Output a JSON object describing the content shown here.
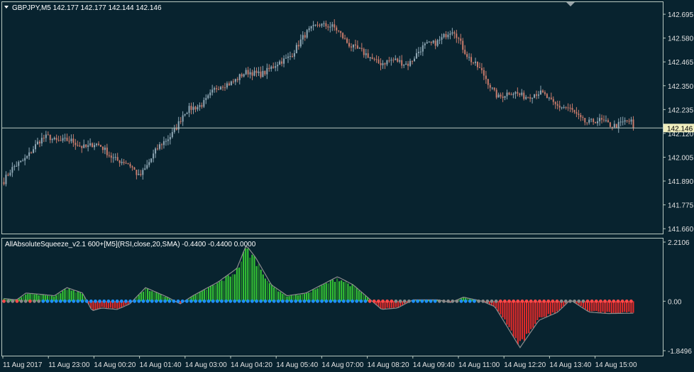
{
  "colors": {
    "background": "#08232F",
    "frame": "#B8C8C0",
    "candle_up": "#8FA8B6",
    "candle_down": "#C97B6B",
    "price_line": "#B8C8C0",
    "price_tag_bg": "#F0EEBE",
    "hist_green": "#33C233",
    "hist_green_dark": "#1F7A2A",
    "hist_red": "#E02A2A",
    "envelope": "#8C8C8C",
    "dot_blue": "#1E90FF",
    "dot_red": "#FF4A4A",
    "dot_gray": "#8A8A8A"
  },
  "main_panel": {
    "header": "GBPJPY,M5  142.177 142.177 142.144 142.146",
    "current_price": "142.146",
    "price_ticks": [
      "142.695",
      "142.580",
      "142.465",
      "142.350",
      "142.235",
      "142.120",
      "142.005",
      "141.890",
      "141.775",
      "141.660"
    ]
  },
  "indicator_panel": {
    "title": "AllAbsoluteSqueeze_v2.1 600+[M5](RSI,close,20,SMA) -0.4400 -0.4400 0.0000",
    "ticks": [
      "2.2106",
      "0.00",
      "-1.8496"
    ]
  },
  "time_axis": [
    "11 Aug 2017",
    "11 Aug 23:00",
    "14 Aug 00:20",
    "14 Aug 01:40",
    "14 Aug 03:00",
    "14 Aug 04:20",
    "14 Aug 05:40",
    "14 Aug 07:00",
    "14 Aug 08:20",
    "14 Aug 09:40",
    "14 Aug 11:00",
    "14 Aug 12:20",
    "14 Aug 13:40",
    "14 Aug 15:00"
  ],
  "chart_data": [
    {
      "type": "candlestick",
      "symbol": "GBPJPY",
      "timeframe": "M5",
      "ylim": [
        141.64,
        142.75
      ],
      "key_points": [
        {
          "t": "11 Aug 2017",
          "close": 141.89
        },
        {
          "t": "11 Aug 23:00",
          "close": 142.1
        },
        {
          "t": "14 Aug 00:20",
          "close": 142.08
        },
        {
          "t": "14 Aug 01:40",
          "close": 141.9
        },
        {
          "t": "14 Aug 03:00",
          "close": 142.23
        },
        {
          "t": "14 Aug 04:20",
          "close": 142.35
        },
        {
          "t": "14 Aug 05:40",
          "close": 142.45
        },
        {
          "t": "14 Aug 07:00",
          "close": 142.65
        },
        {
          "t": "14 Aug 08:20",
          "close": 142.5
        },
        {
          "t": "14 Aug 09:40",
          "close": 142.47
        },
        {
          "t": "14 Aug 11:00",
          "close": 142.6
        },
        {
          "t": "14 Aug 12:20",
          "close": 142.32
        },
        {
          "t": "14 Aug 13:40",
          "close": 142.28
        },
        {
          "t": "14 Aug 15:00",
          "close": 142.2
        },
        {
          "t": "end",
          "close": 142.146
        }
      ]
    },
    {
      "type": "histogram",
      "ylim": [
        -1.8496,
        2.2106
      ],
      "profile": [
        {
          "x": 0.0,
          "v": 0.1
        },
        {
          "x": 0.02,
          "v": 0.05
        },
        {
          "x": 0.035,
          "v": 0.3
        },
        {
          "x": 0.06,
          "v": 0.25
        },
        {
          "x": 0.08,
          "v": 0.2
        },
        {
          "x": 0.1,
          "v": 0.5
        },
        {
          "x": 0.125,
          "v": 0.3
        },
        {
          "x": 0.14,
          "v": -0.35
        },
        {
          "x": 0.155,
          "v": -0.25
        },
        {
          "x": 0.18,
          "v": -0.3
        },
        {
          "x": 0.2,
          "v": -0.1
        },
        {
          "x": 0.225,
          "v": 0.5
        },
        {
          "x": 0.26,
          "v": 0.15
        },
        {
          "x": 0.28,
          "v": -0.1
        },
        {
          "x": 0.3,
          "v": 0.2
        },
        {
          "x": 0.34,
          "v": 0.7
        },
        {
          "x": 0.37,
          "v": 1.2
        },
        {
          "x": 0.385,
          "v": 2.05
        },
        {
          "x": 0.4,
          "v": 1.6
        },
        {
          "x": 0.425,
          "v": 0.6
        },
        {
          "x": 0.45,
          "v": 0.2
        },
        {
          "x": 0.48,
          "v": 0.3
        },
        {
          "x": 0.53,
          "v": 0.9
        },
        {
          "x": 0.555,
          "v": 0.6
        },
        {
          "x": 0.58,
          "v": 0.1
        },
        {
          "x": 0.6,
          "v": -0.3
        },
        {
          "x": 0.625,
          "v": -0.25
        },
        {
          "x": 0.65,
          "v": 0.05
        },
        {
          "x": 0.69,
          "v": 0.05
        },
        {
          "x": 0.71,
          "v": -0.05
        },
        {
          "x": 0.73,
          "v": 0.15
        },
        {
          "x": 0.76,
          "v": 0.0
        },
        {
          "x": 0.78,
          "v": -0.2
        },
        {
          "x": 0.82,
          "v": -1.7
        },
        {
          "x": 0.85,
          "v": -0.7
        },
        {
          "x": 0.88,
          "v": -0.4
        },
        {
          "x": 0.9,
          "v": 0.05
        },
        {
          "x": 0.93,
          "v": -0.4
        },
        {
          "x": 0.96,
          "v": -0.45
        },
        {
          "x": 1.0,
          "v": -0.44
        }
      ]
    }
  ]
}
